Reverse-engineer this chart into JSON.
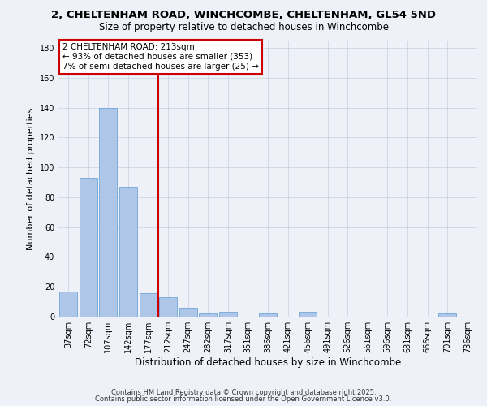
{
  "title1": "2, CHELTENHAM ROAD, WINCHCOMBE, CHELTENHAM, GL54 5ND",
  "title2": "Size of property relative to detached houses in Winchcombe",
  "xlabel": "Distribution of detached houses by size in Winchcombe",
  "ylabel": "Number of detached properties",
  "bar_labels": [
    "37sqm",
    "72sqm",
    "107sqm",
    "142sqm",
    "177sqm",
    "212sqm",
    "247sqm",
    "282sqm",
    "317sqm",
    "351sqm",
    "386sqm",
    "421sqm",
    "456sqm",
    "491sqm",
    "526sqm",
    "561sqm",
    "596sqm",
    "631sqm",
    "666sqm",
    "701sqm",
    "736sqm"
  ],
  "bar_values": [
    17,
    93,
    140,
    87,
    16,
    13,
    6,
    2,
    3,
    0,
    2,
    0,
    3,
    0,
    0,
    0,
    0,
    0,
    0,
    2,
    0
  ],
  "bar_color": "#aec6e8",
  "bar_edgecolor": "#5b9bd5",
  "vline_bar_index": 5,
  "vline_color": "#cc0000",
  "annotation_line1": "2 CHELTENHAM ROAD: 213sqm",
  "annotation_line2": "← 93% of detached houses are smaller (353)",
  "annotation_line3": "7% of semi-detached houses are larger (25) →",
  "annotation_box_color": "#ffffff",
  "annotation_box_edgecolor": "#cc0000",
  "ylim": [
    0,
    185
  ],
  "yticks": [
    0,
    20,
    40,
    60,
    80,
    100,
    120,
    140,
    160,
    180
  ],
  "background_color": "#eef2f8",
  "footer1": "Contains HM Land Registry data © Crown copyright and database right 2025.",
  "footer2": "Contains public sector information licensed under the Open Government Licence v3.0.",
  "title_fontsize": 9.5,
  "subtitle_fontsize": 8.5,
  "xlabel_fontsize": 8.5,
  "ylabel_fontsize": 8,
  "tick_fontsize": 7,
  "annotation_fontsize": 7.5,
  "footer_fontsize": 6
}
